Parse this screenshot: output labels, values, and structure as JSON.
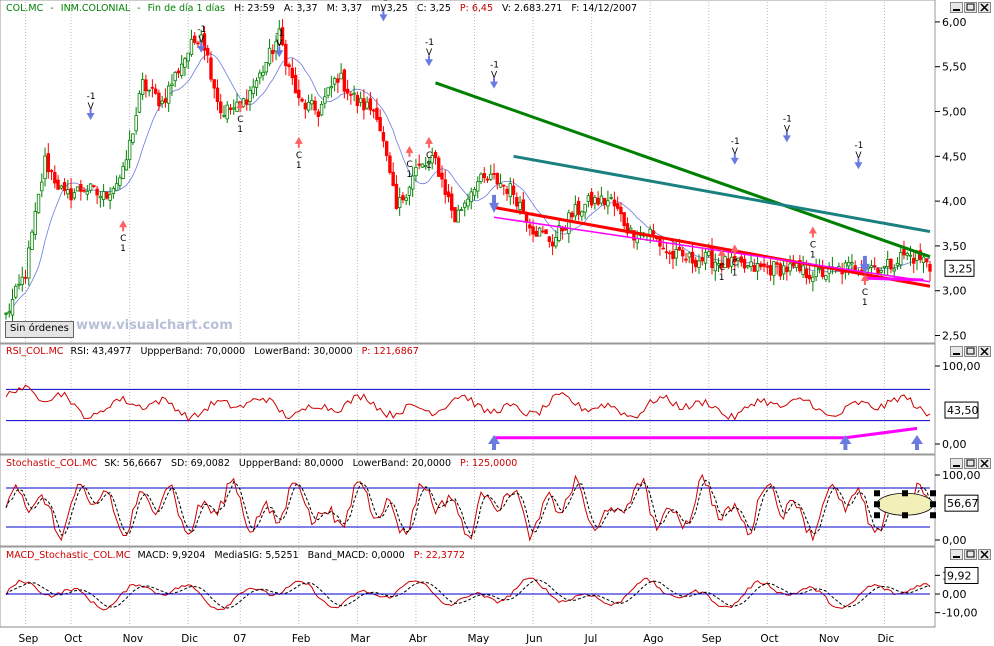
{
  "header": {
    "main": {
      "symbol": "COL.MC",
      "name": "INM.COLONIAL",
      "period": "Fin de día 1 días",
      "hour": "H: 23:59",
      "open": "A: 3,37",
      "max": "M: 3,37",
      "min": "m: 3,25",
      "close": "C: 3,25",
      "pct": "P: 6,45",
      "vol": "V: 2.683.271",
      "date": "F: 14/12/2007"
    },
    "rsi": {
      "name": "RSI_COL.MC",
      "value": "RSI: 43,4977",
      "upper": "UppperBand: 70,0000",
      "lower": "LowerBand: 30,0000",
      "p": "P: 121,6867"
    },
    "stoch": {
      "name": "Stochastic_COL.MC",
      "sk": "SK: 56,6667",
      "sd": "SD: 69,0082",
      "upper": "UppperBand: 80,0000",
      "lower": "LowerBand: 20,0000",
      "p": "P: 125,0000"
    },
    "macd": {
      "name": "MACD_Stochastic_COL.MC",
      "macd": "MACD: 9,9204",
      "sig": "MediaSIG: 5,5251",
      "band": "Band_MACD: 0,0000",
      "p": "P: 22,3772"
    }
  },
  "buttons": {
    "sin_ordenes": "Sin órdenes"
  },
  "watermark": "www.visualchart.com",
  "colors": {
    "up": "#008000",
    "down": "#ff0000",
    "rsi": "#cc0000",
    "band": "#0000cc",
    "trend_green": "#008000",
    "trend_teal": "#1a8080",
    "trend_red": "#ff0000",
    "magenta": "#ff00ff",
    "arrow_blue": "#6a7adf",
    "arrow_red": "#ff6060"
  },
  "chart_data": [
    {
      "type": "candlestick",
      "title": "COL.MC - INM.COLONIAL",
      "price_ticks": [
        "6,00",
        "5,50",
        "5,00",
        "4,50",
        "4,00",
        "3,50",
        "3,00",
        "2,50"
      ],
      "ylim": [
        2.45,
        6.2
      ],
      "x_labels": [
        "Sep",
        "Oct",
        "Nov",
        "Dic",
        "07",
        "Feb",
        "Mar",
        "Abr",
        "May",
        "Jun",
        "Jul",
        "Ago",
        "Sep",
        "Oct",
        "Nov",
        "Dic"
      ],
      "last_price": "3,25",
      "series": [
        {
          "x": [
            0,
            6,
            12,
            18,
            24,
            30,
            36,
            42,
            48,
            54,
            60,
            66,
            72,
            78,
            84,
            90,
            96,
            102,
            108,
            114,
            120,
            126,
            132,
            138,
            144,
            150,
            156,
            162,
            168,
            174,
            180,
            186,
            192,
            198,
            204,
            210,
            216,
            222,
            228,
            234,
            240,
            246,
            252,
            258,
            264,
            270,
            276,
            282,
            284
          ],
          "y": [
            2.72,
            3.2,
            4.45,
            4.05,
            4.15,
            4.05,
            4.3,
            5.3,
            5.1,
            5.55,
            5.9,
            5.0,
            5.05,
            5.4,
            5.85,
            5.1,
            5.0,
            5.4,
            5.1,
            5.0,
            3.9,
            4.35,
            4.45,
            3.8,
            4.2,
            4.25,
            4.1,
            3.7,
            3.55,
            3.85,
            4.0,
            4.0,
            3.65,
            3.65,
            3.4,
            3.35,
            3.35,
            3.3,
            3.25,
            3.25,
            3.25,
            3.2,
            3.2,
            3.25,
            3.3,
            3.25,
            3.4,
            3.35,
            3.25
          ]
        }
      ],
      "annotations": {
        "sell_markers": [
          "-1",
          "V"
        ],
        "buy_markers": [
          "C",
          "1"
        ]
      }
    },
    {
      "type": "line",
      "title": "RSI_COL.MC",
      "y_ticks": [
        "100,00",
        "0,00"
      ],
      "last_value": "43,50",
      "bands": [
        70,
        30
      ],
      "ylim": [
        0,
        100
      ]
    },
    {
      "type": "line",
      "title": "Stochastic_COL.MC",
      "y_ticks": [
        "100,00",
        "0,00"
      ],
      "last_value": "56,67",
      "bands": [
        80,
        20
      ],
      "ylim": [
        0,
        100
      ]
    },
    {
      "type": "line",
      "title": "MACD_Stochastic_COL.MC",
      "y_ticks": [
        "10,00",
        "0,00",
        "-10,00"
      ],
      "last_value": "9,92",
      "ylim": [
        -15,
        15
      ]
    }
  ]
}
